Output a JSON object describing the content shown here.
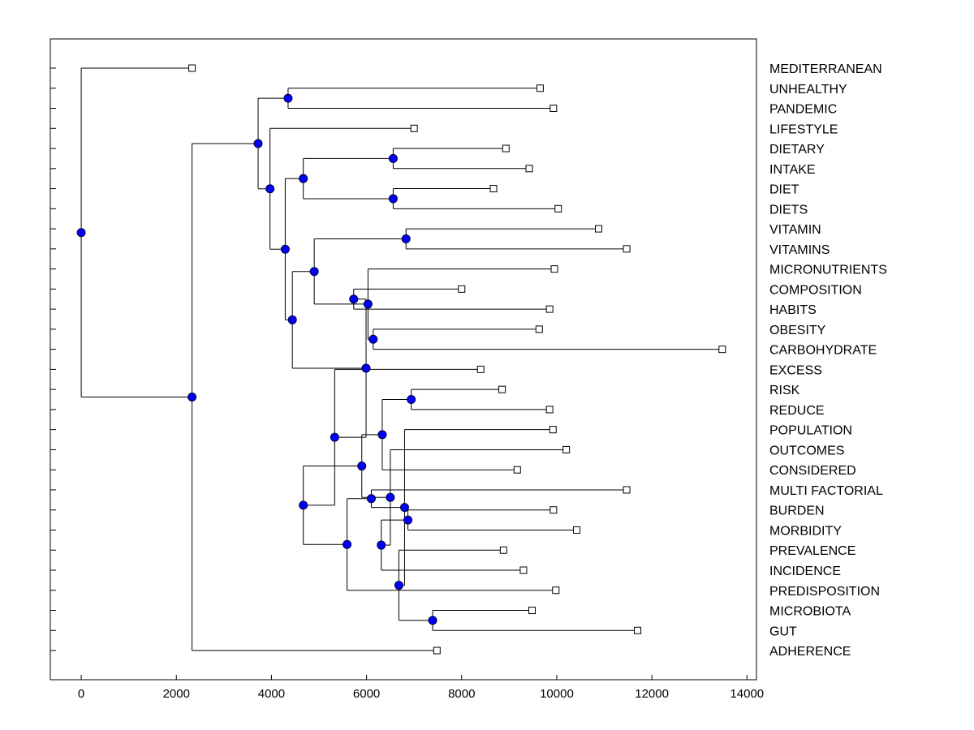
{
  "chart_data": {
    "type": "dendrogram",
    "title": "",
    "xlabel": "",
    "ylabel": "",
    "xlim": [
      -650,
      14200
    ],
    "x_ticks": [
      0,
      2000,
      4000,
      6000,
      8000,
      10000,
      12000,
      14000
    ],
    "x_tick_labels": [
      "0",
      "2000",
      "4000",
      "6000",
      "8000",
      "10000",
      "12000",
      "14000"
    ],
    "leaves": [
      {
        "label": "MEDITERRANEAN",
        "value": 2330
      },
      {
        "label": "UNHEALTHY",
        "value": 9650
      },
      {
        "label": "PANDEMIC",
        "value": 9930
      },
      {
        "label": "LIFESTYLE",
        "value": 7000
      },
      {
        "label": "DIETARY",
        "value": 8930
      },
      {
        "label": "INTAKE",
        "value": 9420
      },
      {
        "label": "DIET",
        "value": 8670
      },
      {
        "label": "DIETS",
        "value": 10030
      },
      {
        "label": "VITAMIN",
        "value": 10880
      },
      {
        "label": "VITAMINS",
        "value": 11470
      },
      {
        "label": "MICRONUTRIENTS",
        "value": 9950
      },
      {
        "label": "COMPOSITION",
        "value": 8000
      },
      {
        "label": "HABITS",
        "value": 9850
      },
      {
        "label": "OBESITY",
        "value": 9630
      },
      {
        "label": "CARBOHYDRATE",
        "value": 13480
      },
      {
        "label": "EXCESS",
        "value": 8400
      },
      {
        "label": "RISK",
        "value": 8850
      },
      {
        "label": "REDUCE",
        "value": 9850
      },
      {
        "label": "POPULATION",
        "value": 9920
      },
      {
        "label": "OUTCOMES",
        "value": 10200
      },
      {
        "label": "CONSIDERED",
        "value": 9170
      },
      {
        "label": "MULTI FACTORIAL",
        "value": 11470
      },
      {
        "label": "BURDEN",
        "value": 9930
      },
      {
        "label": "MORBIDITY",
        "value": 10420
      },
      {
        "label": "PREVALENCE",
        "value": 8880
      },
      {
        "label": "INCIDENCE",
        "value": 9300
      },
      {
        "label": "PREDISPOSITION",
        "value": 9980
      },
      {
        "label": "MICROBIOTA",
        "value": 9480
      },
      {
        "label": "GUT",
        "value": 11700
      },
      {
        "label": "ADHERENCE",
        "value": 7480
      }
    ],
    "merges": [
      {
        "id": "m1",
        "value": 0,
        "children": [
          "L0",
          "n2"
        ]
      },
      {
        "id": "m2",
        "value": 2330,
        "children": [
          "n3",
          "L29"
        ]
      },
      {
        "id": "m3",
        "value": 3720,
        "children": [
          "n4",
          "n5"
        ]
      },
      {
        "id": "m4",
        "value": 3970,
        "children": [
          "n6",
          "L3"
        ]
      },
      {
        "id": "m5",
        "value": 4350,
        "children": [
          "L1",
          "L2"
        ]
      },
      {
        "id": "m6",
        "value": 4290,
        "children": [
          "n7",
          "n8"
        ]
      },
      {
        "id": "m7",
        "value": 4440,
        "children": [
          "n9",
          "n10"
        ]
      },
      {
        "id": "m8",
        "value": 4670,
        "children": [
          "n11",
          "n12"
        ]
      },
      {
        "id": "m9",
        "value": 4900,
        "children": [
          "n13",
          "n14"
        ]
      },
      {
        "id": "m10",
        "value": 5990,
        "children": [
          "n15",
          "n16"
        ]
      },
      {
        "id": "m11",
        "value": 6560,
        "children": [
          "L4",
          "L5"
        ]
      },
      {
        "id": "m12",
        "value": 6560,
        "children": [
          "L6",
          "L7"
        ]
      },
      {
        "id": "m13",
        "value": 6030,
        "children": [
          "n17",
          "L10"
        ]
      },
      {
        "id": "m14",
        "value": 6830,
        "children": [
          "L8",
          "L9"
        ]
      },
      {
        "id": "m15",
        "value": 5730,
        "children": [
          "L11",
          "L12"
        ]
      },
      {
        "id": "m16",
        "value": 5330,
        "children": [
          "n18",
          "L15"
        ]
      },
      {
        "id": "m17",
        "value": 6140,
        "children": [
          "L13",
          "L14"
        ]
      },
      {
        "id": "m18",
        "value": 4670,
        "children": [
          "n19",
          "n20"
        ]
      },
      {
        "id": "m19",
        "value": 5590,
        "children": [
          "n21",
          "L26"
        ]
      },
      {
        "id": "m20",
        "value": 5900,
        "children": [
          "n22",
          "n23"
        ]
      },
      {
        "id": "m21",
        "value": 6100,
        "children": [
          "n24",
          "L21"
        ]
      },
      {
        "id": "m22",
        "value": 6330,
        "children": [
          "n25",
          "L20"
        ]
      },
      {
        "id": "m23",
        "value": 6500,
        "children": [
          "n26",
          "L19"
        ]
      },
      {
        "id": "m24",
        "value": 6800,
        "children": [
          "n27",
          "L18"
        ]
      },
      {
        "id": "m25",
        "value": 6940,
        "children": [
          "L16",
          "L17"
        ]
      },
      {
        "id": "m26",
        "value": 6310,
        "children": [
          "n28",
          "L25"
        ]
      },
      {
        "id": "m27",
        "value": 6680,
        "children": [
          "n29",
          "L24"
        ]
      },
      {
        "id": "m28",
        "value": 6870,
        "children": [
          "L22",
          "L23"
        ]
      },
      {
        "id": "m29",
        "value": 7390,
        "children": [
          "L27",
          "L28"
        ]
      }
    ],
    "colors": {
      "node_fill": "#0000ff",
      "node_stroke": "#000033",
      "line": "#000000",
      "leaf_fill": "#ffffff"
    }
  }
}
